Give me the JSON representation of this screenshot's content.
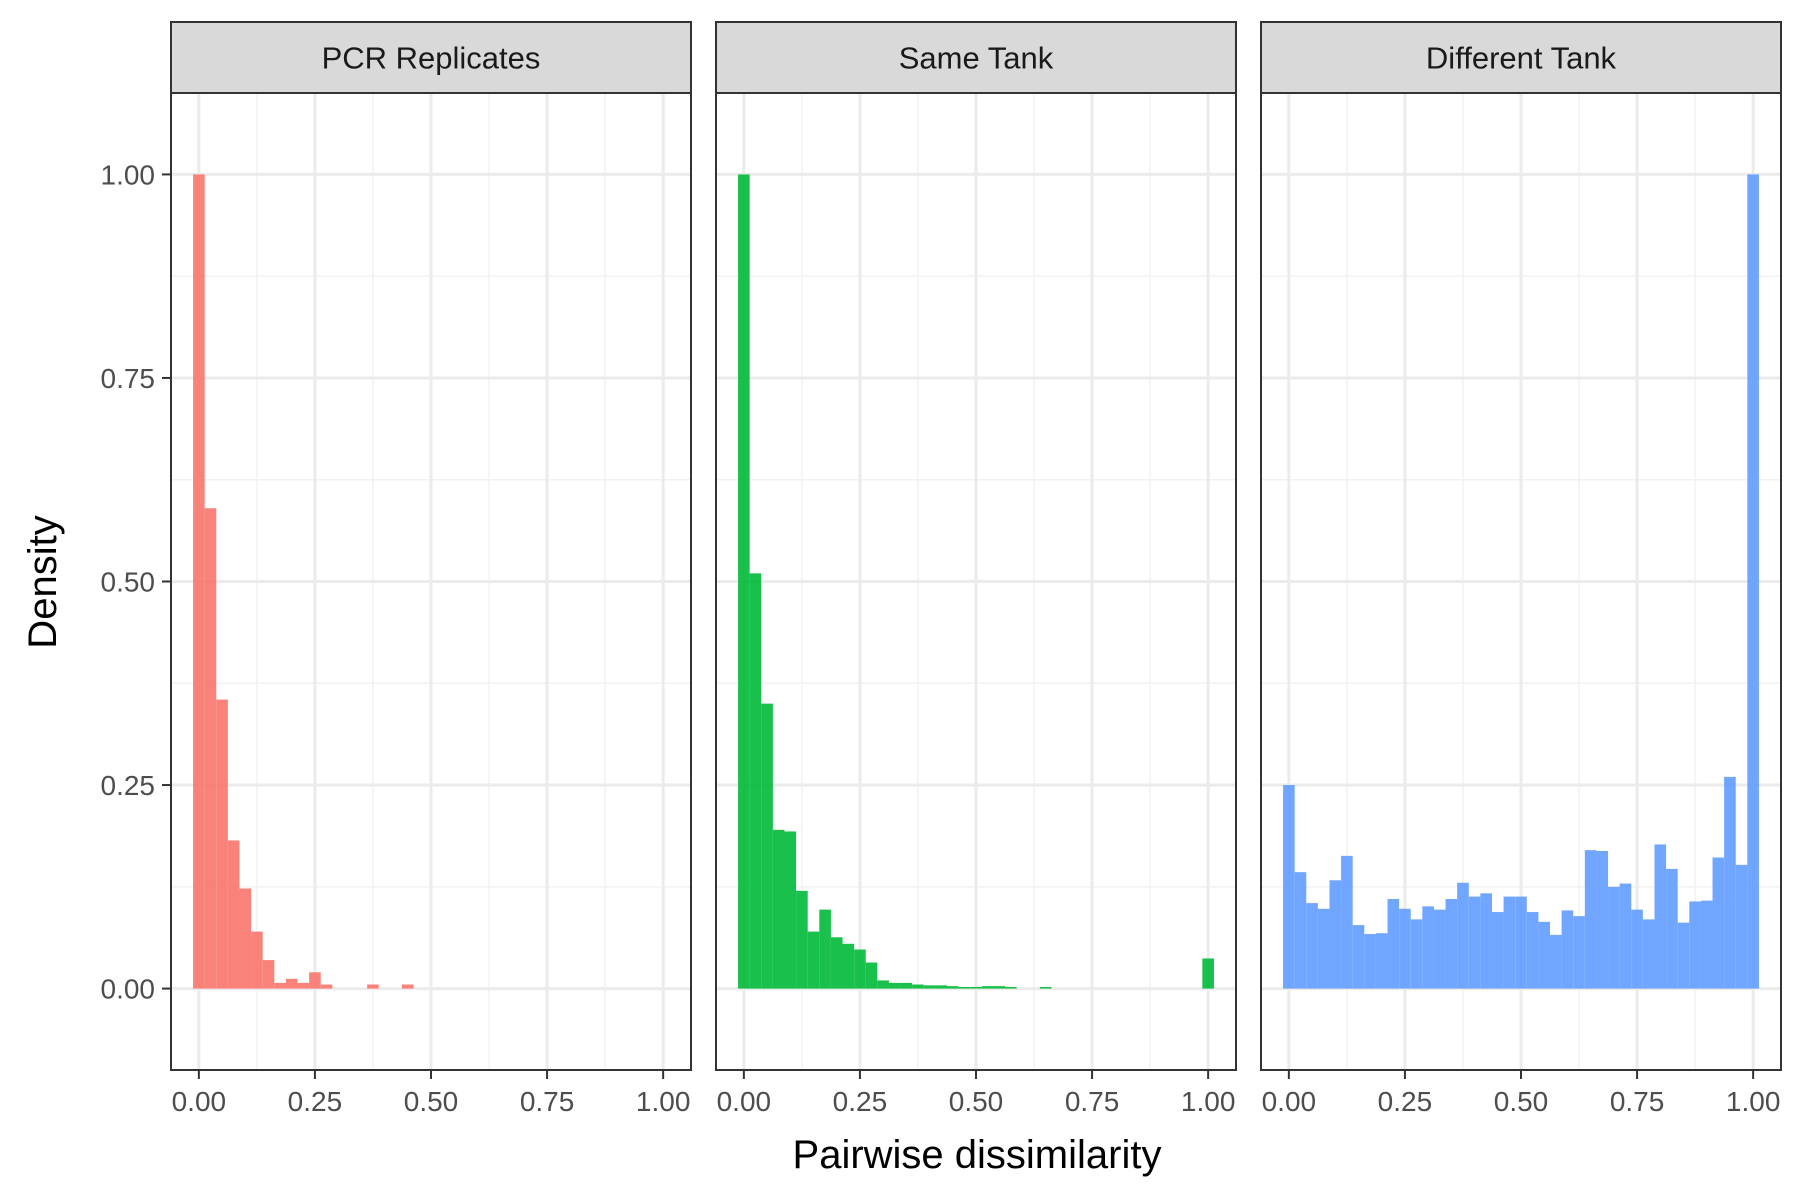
{
  "chart_data": {
    "type": "bar",
    "xlabel": "Pairwise dissimilarity",
    "ylabel": "Density",
    "xlim": [
      -0.06,
      1.06
    ],
    "ylim": [
      -0.1,
      1.1
    ],
    "x_ticks": [
      "0.00",
      "0.25",
      "0.50",
      "0.75",
      "1.00"
    ],
    "y_ticks": [
      "0.00",
      "0.25",
      "0.50",
      "0.75",
      "1.00"
    ],
    "grid": true,
    "bin_width": 0.025,
    "panels": [
      {
        "name": "PCR Replicates",
        "color": "#F8766D",
        "bin_centers": [
          0.0,
          0.025,
          0.05,
          0.075,
          0.1,
          0.125,
          0.15,
          0.175,
          0.2,
          0.225,
          0.25,
          0.275,
          0.375,
          0.45
        ],
        "values": [
          1.0,
          0.59,
          0.355,
          0.182,
          0.123,
          0.07,
          0.035,
          0.007,
          0.012,
          0.007,
          0.02,
          0.005,
          0.005,
          0.005
        ]
      },
      {
        "name": "Same Tank",
        "color": "#00BA38",
        "bin_centers": [
          0.0,
          0.025,
          0.05,
          0.075,
          0.1,
          0.125,
          0.15,
          0.175,
          0.2,
          0.225,
          0.25,
          0.275,
          0.3,
          0.325,
          0.35,
          0.375,
          0.4,
          0.425,
          0.45,
          0.475,
          0.5,
          0.525,
          0.55,
          0.575,
          0.65,
          1.0
        ],
        "values": [
          1.0,
          0.51,
          0.35,
          0.195,
          0.193,
          0.12,
          0.07,
          0.097,
          0.063,
          0.055,
          0.048,
          0.032,
          0.01,
          0.007,
          0.007,
          0.005,
          0.004,
          0.004,
          0.003,
          0.002,
          0.002,
          0.003,
          0.003,
          0.002,
          0.002,
          0.037
        ]
      },
      {
        "name": "Different Tank",
        "color": "#619CFF",
        "bin_centers": [
          0.0,
          0.025,
          0.05,
          0.075,
          0.1,
          0.125,
          0.15,
          0.175,
          0.2,
          0.225,
          0.25,
          0.275,
          0.3,
          0.325,
          0.35,
          0.375,
          0.4,
          0.425,
          0.45,
          0.475,
          0.5,
          0.525,
          0.55,
          0.575,
          0.6,
          0.625,
          0.65,
          0.675,
          0.7,
          0.725,
          0.75,
          0.775,
          0.8,
          0.825,
          0.85,
          0.875,
          0.9,
          0.925,
          0.95,
          0.975,
          1.0
        ],
        "values": [
          0.25,
          0.143,
          0.105,
          0.098,
          0.133,
          0.163,
          0.078,
          0.067,
          0.068,
          0.11,
          0.098,
          0.085,
          0.101,
          0.097,
          0.11,
          0.13,
          0.113,
          0.117,
          0.094,
          0.113,
          0.113,
          0.094,
          0.082,
          0.066,
          0.096,
          0.089,
          0.17,
          0.169,
          0.125,
          0.129,
          0.097,
          0.085,
          0.177,
          0.147,
          0.081,
          0.107,
          0.108,
          0.161,
          0.26,
          0.152,
          1.0
        ]
      }
    ]
  }
}
